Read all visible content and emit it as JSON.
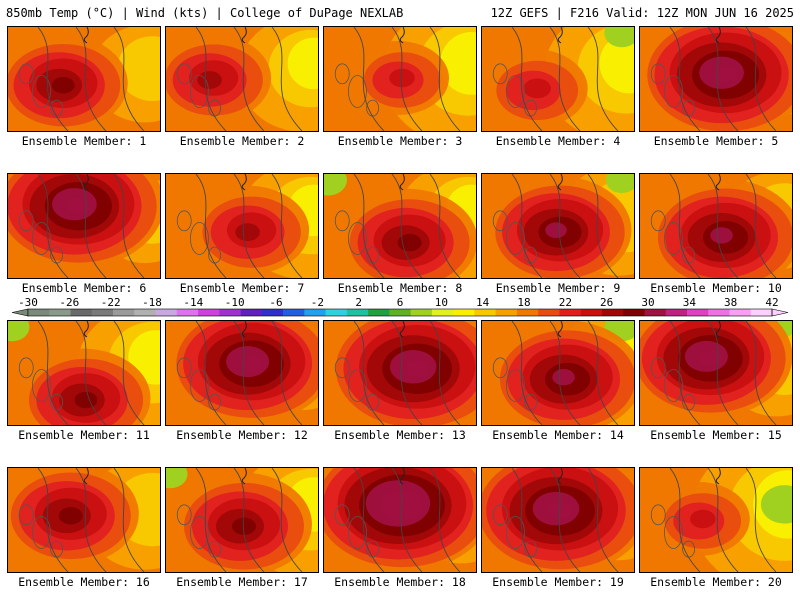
{
  "header": {
    "left": "850mb Temp (°C) | Wind (kts) | College of DuPage NEXLAB",
    "right": "12Z GEFS | F216 Valid: 12Z MON JUN 16 2025"
  },
  "colorbar": {
    "tick_labels": [
      "-30",
      "-26",
      "-22",
      "-18",
      "-14",
      "-10",
      "-6",
      "-2",
      "2",
      "6",
      "10",
      "14",
      "18",
      "22",
      "26",
      "30",
      "34",
      "38",
      "42"
    ],
    "colors": [
      "#7a8a7a",
      "#8a9a8a",
      "#6a6a6a",
      "#7a7a7a",
      "#9a9a9a",
      "#b0b0b0",
      "#c8a8e0",
      "#e070f0",
      "#d040e0",
      "#a030d0",
      "#6020c0",
      "#3030c8",
      "#2060e0",
      "#20a0f0",
      "#30d0e0",
      "#20c0a0",
      "#20a040",
      "#60b020",
      "#a0d020",
      "#e0f020",
      "#f8f000",
      "#f8c800",
      "#f8a000",
      "#f07800",
      "#e84c10",
      "#e02020",
      "#c81010",
      "#a00808",
      "#800000",
      "#a01040",
      "#c02080",
      "#e040c0",
      "#f070e0",
      "#f8a0f0",
      "#fcd0fc"
    ]
  },
  "members": [
    {
      "label": "Ensemble Member: 1",
      "hot": 0.55,
      "hx": 0.35,
      "hy": 0.55,
      "cool": 0.2,
      "green": 0
    },
    {
      "label": "Ensemble Member: 2",
      "hot": 0.45,
      "hx": 0.3,
      "hy": 0.5,
      "cool": 0.35,
      "green": 0
    },
    {
      "label": "Ensemble Member: 3",
      "hot": 0.3,
      "hx": 0.5,
      "hy": 0.5,
      "cool": 0.55,
      "green": 0
    },
    {
      "label": "Ensemble Member: 4",
      "hot": 0.35,
      "hx": 0.35,
      "hy": 0.6,
      "cool": 0.5,
      "green": 0.25
    },
    {
      "label": "Ensemble Member: 5",
      "hot": 0.85,
      "hx": 0.55,
      "hy": 0.45,
      "cool": 0.1,
      "green": 0
    },
    {
      "label": "Ensemble Member: 6",
      "hot": 0.85,
      "hx": 0.45,
      "hy": 0.3,
      "cool": 0.1,
      "green": 0
    },
    {
      "label": "Ensemble Member: 7",
      "hot": 0.45,
      "hx": 0.55,
      "hy": 0.55,
      "cool": 0.35,
      "green": 0
    },
    {
      "label": "Ensemble Member: 8",
      "hot": 0.6,
      "hx": 0.55,
      "hy": 0.65,
      "cool": 0.35,
      "green": 0.3
    },
    {
      "label": "Ensemble Member: 9",
      "hot": 0.65,
      "hx": 0.5,
      "hy": 0.55,
      "cool": 0.3,
      "green": 0.2
    },
    {
      "label": "Ensemble Member: 10",
      "hot": 0.7,
      "hx": 0.55,
      "hy": 0.6,
      "cool": 0.2,
      "green": 0
    },
    {
      "label": "Ensemble Member: 11",
      "hot": 0.55,
      "hx": 0.5,
      "hy": 0.75,
      "cool": 0.4,
      "green": 0.25
    },
    {
      "label": "Ensemble Member: 12",
      "hot": 0.8,
      "hx": 0.55,
      "hy": 0.4,
      "cool": 0.1,
      "green": 0
    },
    {
      "label": "Ensemble Member: 13",
      "hot": 0.9,
      "hx": 0.6,
      "hy": 0.45,
      "cool": 0.15,
      "green": 0
    },
    {
      "label": "Ensemble Member: 14",
      "hot": 0.7,
      "hx": 0.55,
      "hy": 0.55,
      "cool": 0.35,
      "green": 0.25
    },
    {
      "label": "Ensemble Member: 15",
      "hot": 0.8,
      "hx": 0.45,
      "hy": 0.35,
      "cool": 0.2,
      "green": 0.15
    },
    {
      "label": "Ensemble Member: 16",
      "hot": 0.6,
      "hx": 0.4,
      "hy": 0.45,
      "cool": 0.3,
      "green": 0
    },
    {
      "label": "Ensemble Member: 17",
      "hot": 0.6,
      "hx": 0.5,
      "hy": 0.55,
      "cool": 0.4,
      "green": 0.25
    },
    {
      "label": "Ensemble Member: 18",
      "hot": 0.95,
      "hx": 0.5,
      "hy": 0.35,
      "cool": 0.2,
      "green": 0.2
    },
    {
      "label": "Ensemble Member: 19",
      "hot": 0.9,
      "hx": 0.5,
      "hy": 0.4,
      "cool": 0.15,
      "green": 0
    },
    {
      "label": "Ensemble Member: 20",
      "hot": 0.3,
      "hx": 0.4,
      "hy": 0.5,
      "cool": 0.65,
      "green": 0.45
    }
  ]
}
